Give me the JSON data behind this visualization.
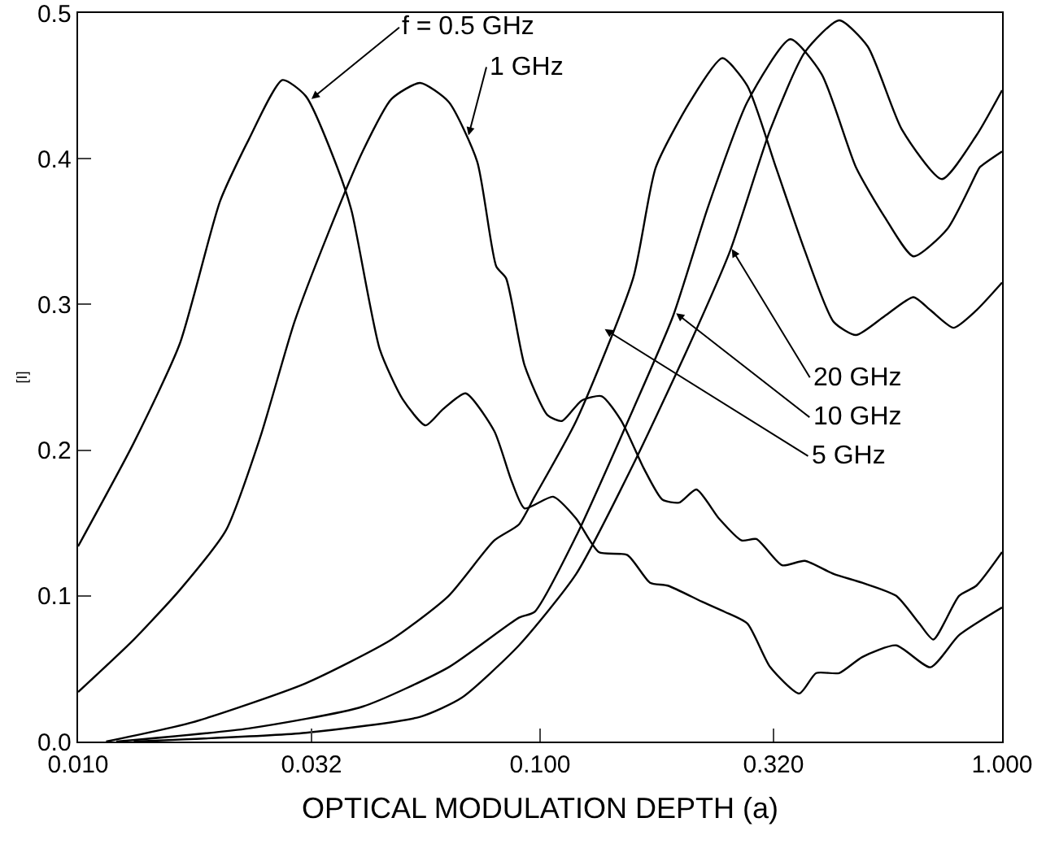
{
  "chart_data": {
    "type": "line",
    "xlabel": "OPTICAL MODULATION DEPTH (a)",
    "ylabel": "[I]",
    "log": "x",
    "grid": false,
    "marker": "none",
    "line_style": "solid",
    "xlim": [
      0.01,
      1.0
    ],
    "xticks": [
      {
        "value": 0.01,
        "label": "0.010"
      },
      {
        "value": 0.032,
        "label": "0.032"
      },
      {
        "value": 0.1,
        "label": "0.100"
      },
      {
        "value": 0.32,
        "label": "0.320"
      },
      {
        "value": 1.0,
        "label": "1.000"
      }
    ],
    "ylim": [
      0,
      0.5
    ],
    "yticks": [
      {
        "value": 0,
        "label": "0.0"
      },
      0.1,
      0.2,
      0.3,
      0.4,
      0.5
    ],
    "series": [
      {
        "color": "#000000",
        "x": [
          0.01,
          0.0132,
          0.0166,
          0.0203,
          0.0234,
          0.0277,
          0.0311,
          0.0364,
          0.0391,
          0.045,
          0.0504,
          0.0565,
          0.0616,
          0.069,
          0.0796,
          0.0867,
          0.0926,
          0.1067,
          0.1197,
          0.134,
          0.1545,
          0.173,
          0.189,
          0.224,
          0.251,
          0.281,
          0.315,
          0.364,
          0.396,
          0.444,
          0.498,
          0.59,
          0.7,
          0.807,
          1.0
        ],
        "values": [
          0.134,
          0.205,
          0.273,
          0.371,
          0.413,
          0.454,
          0.443,
          0.394,
          0.364,
          0.269,
          0.235,
          0.217,
          0.228,
          0.239,
          0.213,
          0.179,
          0.16,
          0.168,
          0.153,
          0.13,
          0.128,
          0.109,
          0.107,
          0.096,
          0.089,
          0.081,
          0.051,
          0.033,
          0.047,
          0.047,
          0.058,
          0.066,
          0.051,
          0.073,
          0.092
        ]
      },
      {
        "color": "#000000",
        "x": [
          0.01,
          0.0132,
          0.0166,
          0.0209,
          0.0248,
          0.0294,
          0.0348,
          0.0413,
          0.0477,
          0.055,
          0.0634,
          0.0731,
          0.0804,
          0.0844,
          0.0926,
          0.1038,
          0.1115,
          0.123,
          0.136,
          0.15,
          0.168,
          0.184,
          0.2,
          0.218,
          0.244,
          0.273,
          0.294,
          0.334,
          0.374,
          0.432,
          0.498,
          0.59,
          0.662,
          0.71,
          0.807,
          0.88,
          1.0
        ],
        "values": [
          0.034,
          0.07,
          0.104,
          0.145,
          0.209,
          0.288,
          0.349,
          0.405,
          0.441,
          0.452,
          0.439,
          0.398,
          0.326,
          0.318,
          0.258,
          0.224,
          0.22,
          0.234,
          0.237,
          0.22,
          0.187,
          0.166,
          0.164,
          0.173,
          0.153,
          0.138,
          0.139,
          0.121,
          0.124,
          0.115,
          0.109,
          0.1,
          0.081,
          0.07,
          0.1,
          0.107,
          0.13
        ]
      },
      {
        "color": "#000000",
        "x": [
          0.0115,
          0.0176,
          0.0311,
          0.0477,
          0.0634,
          0.0796,
          0.09,
          0.0973,
          0.1197,
          0.159,
          0.178,
          0.211,
          0.248,
          0.281,
          0.324,
          0.374,
          0.432,
          0.483,
          0.557,
          0.643,
          0.7,
          0.785,
          0.88,
          1.0
        ],
        "values": [
          0,
          0.013,
          0.04,
          0.07,
          0.1,
          0.138,
          0.149,
          0.168,
          0.22,
          0.318,
          0.394,
          0.439,
          0.469,
          0.45,
          0.394,
          0.337,
          0.288,
          0.279,
          0.292,
          0.305,
          0.296,
          0.284,
          0.296,
          0.315
        ]
      },
      {
        "color": "#000000",
        "x": [
          0.0121,
          0.0234,
          0.0413,
          0.0634,
          0.09,
          0.0973,
          0.1197,
          0.159,
          0.194,
          0.231,
          0.281,
          0.348,
          0.407,
          0.483,
          0.557,
          0.643,
          0.762,
          0.88,
          0.894,
          1.0
        ],
        "values": [
          0,
          0.009,
          0.024,
          0.051,
          0.085,
          0.089,
          0.141,
          0.228,
          0.292,
          0.367,
          0.439,
          0.482,
          0.458,
          0.394,
          0.36,
          0.333,
          0.352,
          0.39,
          0.394,
          0.405
        ]
      },
      {
        "color": "#000000",
        "x": [
          0.0132,
          0.0311,
          0.055,
          0.0676,
          0.09,
          0.1197,
          0.159,
          0.211,
          0.258,
          0.315,
          0.374,
          0.444,
          0.512,
          0.607,
          0.741,
          0.88,
          1.0
        ],
        "values": [
          0,
          0.006,
          0.017,
          0.03,
          0.066,
          0.115,
          0.19,
          0.273,
          0.337,
          0.42,
          0.473,
          0.495,
          0.477,
          0.42,
          0.386,
          0.416,
          0.447
        ]
      }
    ],
    "annotations": [
      {
        "text": "f = 0.5 GHz",
        "x": 0.032,
        "y": 0.441
      },
      {
        "text": "1 GHz",
        "x": 0.07,
        "y": 0.416
      },
      {
        "text": "20 GHz",
        "x": 0.26,
        "y": 0.338
      },
      {
        "text": "10 GHz",
        "x": 0.197,
        "y": 0.294
      },
      {
        "text": "5 GHz",
        "x": 0.138,
        "y": 0.283
      }
    ]
  }
}
